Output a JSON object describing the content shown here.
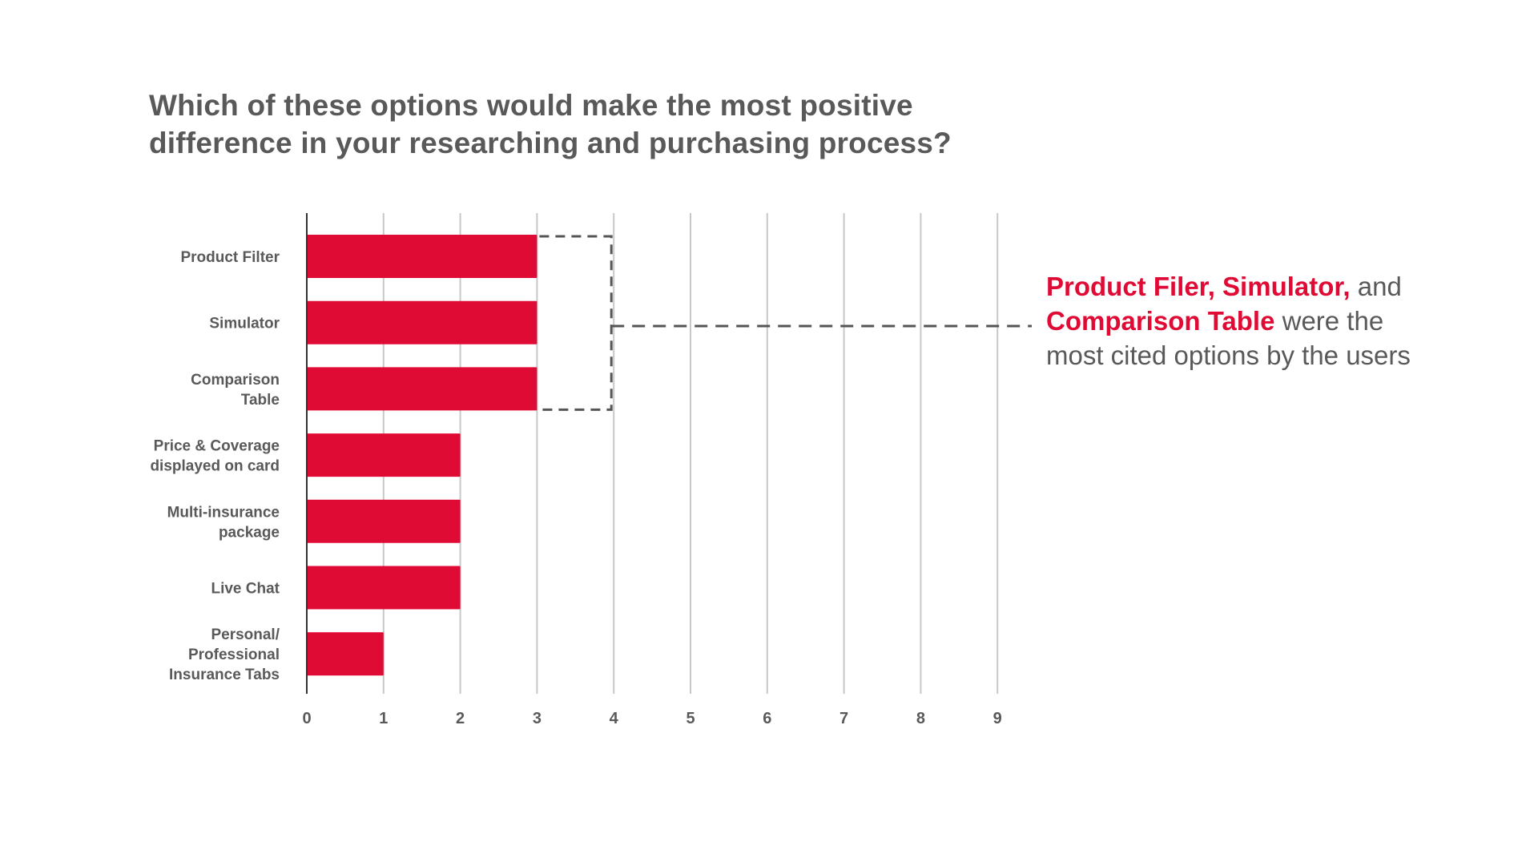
{
  "chart_data": {
    "type": "bar",
    "orientation": "horizontal",
    "title": "Which of these options would make the most positive difference in your researching and purchasing process?",
    "title_lines": [
      "Which of these options would make the most positive",
      "difference in your researching and purchasing process?"
    ],
    "categories": [
      [
        "Product Filter"
      ],
      [
        "Simulator"
      ],
      [
        "Comparison",
        "Table"
      ],
      [
        "Price & Coverage",
        "displayed on card"
      ],
      [
        "Multi-insurance",
        "package"
      ],
      [
        "Live Chat"
      ],
      [
        "Personal/",
        "Professional",
        "Insurance Tabs"
      ]
    ],
    "values": [
      3,
      3,
      3,
      2,
      2,
      2,
      1
    ],
    "xlim": [
      0,
      9
    ],
    "ticks": [
      "0",
      "1",
      "2",
      "3",
      "4",
      "5",
      "6",
      "7",
      "8",
      "9"
    ],
    "grid": true,
    "bar_color": "#e00b34",
    "grid_color": "#c8c8c8",
    "highlighted_categories": [
      0,
      1,
      2
    ],
    "bracket_at": 4
  },
  "callout": {
    "highlight_1": "Product Filer, Simulator,",
    "text_1": " and",
    "highlight_2": "Comparison Table",
    "text_2": " were the",
    "text_3": "most cited options by the users"
  },
  "colors": {
    "accent": "#e00b34",
    "text": "#595959",
    "axis": "#333333",
    "dashed": "#555555"
  }
}
